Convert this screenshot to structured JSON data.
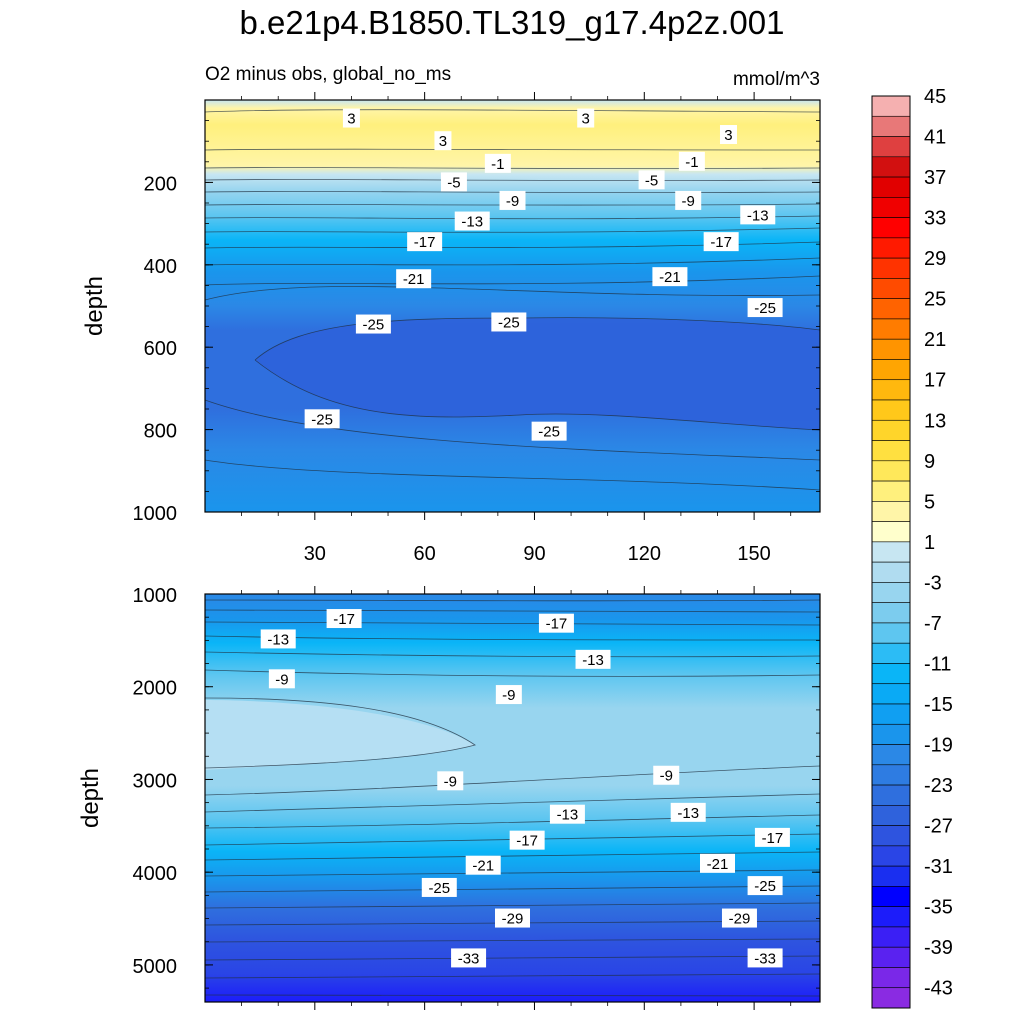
{
  "chart_data": {
    "type": "heatmap",
    "title": "b.e21p4.B1850.TL319_g17.4p2z.001",
    "subtitle": "O2 minus obs, global_no_ms",
    "units": "mmol/m^3",
    "x": {
      "range": [
        0,
        168
      ],
      "ticks": [
        30,
        60,
        90,
        120,
        150
      ],
      "tick_labels": [
        "30",
        "60",
        "90",
        "120",
        "150"
      ]
    },
    "panels": [
      {
        "name": "upper",
        "ylabel": "depth",
        "ylim": [
          0,
          1000
        ],
        "yticks": [
          200,
          400,
          600,
          800,
          1000
        ],
        "ytick_labels": [
          "200",
          "400",
          "600",
          "800",
          "1000"
        ],
        "contours": [
          {
            "label": "3",
            "x": 40,
            "y": 45
          },
          {
            "label": "3",
            "x": 104,
            "y": 45
          },
          {
            "label": "3",
            "x": 65,
            "y": 100
          },
          {
            "label": "3",
            "x": 143,
            "y": 85
          },
          {
            "label": "-1",
            "x": 80,
            "y": 155
          },
          {
            "label": "-1",
            "x": 133,
            "y": 150
          },
          {
            "label": "-5",
            "x": 68,
            "y": 200
          },
          {
            "label": "-5",
            "x": 122,
            "y": 195
          },
          {
            "label": "-9",
            "x": 84,
            "y": 245
          },
          {
            "label": "-9",
            "x": 132,
            "y": 245
          },
          {
            "label": "-13",
            "x": 73,
            "y": 295
          },
          {
            "label": "-13",
            "x": 151,
            "y": 280
          },
          {
            "label": "-17",
            "x": 60,
            "y": 345
          },
          {
            "label": "-17",
            "x": 141,
            "y": 345
          },
          {
            "label": "-21",
            "x": 57,
            "y": 435
          },
          {
            "label": "-21",
            "x": 127,
            "y": 430
          },
          {
            "label": "-25",
            "x": 46,
            "y": 545
          },
          {
            "label": "-25",
            "x": 83,
            "y": 540
          },
          {
            "label": "-25",
            "x": 153,
            "y": 505
          },
          {
            "label": "-25",
            "x": 32,
            "y": 775
          },
          {
            "label": "-25",
            "x": 94,
            "y": 805
          }
        ]
      },
      {
        "name": "lower",
        "ylabel": "depth",
        "ylim": [
          1000,
          5400
        ],
        "yticks": [
          1000,
          2000,
          3000,
          4000,
          5000
        ],
        "ytick_labels": [
          "1000",
          "2000",
          "3000",
          "4000",
          "5000"
        ],
        "contours": [
          {
            "label": "-17",
            "x": 38,
            "y": 1270
          },
          {
            "label": "-17",
            "x": 96,
            "y": 1320
          },
          {
            "label": "-13",
            "x": 20,
            "y": 1490
          },
          {
            "label": "-13",
            "x": 106,
            "y": 1710
          },
          {
            "label": "-9",
            "x": 21,
            "y": 1920
          },
          {
            "label": "-9",
            "x": 83,
            "y": 2090
          },
          {
            "label": "-9",
            "x": 67,
            "y": 3020
          },
          {
            "label": "-9",
            "x": 126,
            "y": 2960
          },
          {
            "label": "-13",
            "x": 99,
            "y": 3380
          },
          {
            "label": "-13",
            "x": 132,
            "y": 3360
          },
          {
            "label": "-17",
            "x": 88,
            "y": 3660
          },
          {
            "label": "-17",
            "x": 155,
            "y": 3630
          },
          {
            "label": "-21",
            "x": 76,
            "y": 3930
          },
          {
            "label": "-21",
            "x": 140,
            "y": 3910
          },
          {
            "label": "-25",
            "x": 64,
            "y": 4170
          },
          {
            "label": "-25",
            "x": 153,
            "y": 4150
          },
          {
            "label": "-29",
            "x": 84,
            "y": 4500
          },
          {
            "label": "-29",
            "x": 146,
            "y": 4500
          },
          {
            "label": "-33",
            "x": 72,
            "y": 4930
          },
          {
            "label": "-33",
            "x": 153,
            "y": 4930
          }
        ]
      }
    ],
    "colorbar": {
      "levels": [
        -45,
        -43,
        -41,
        -39,
        -37,
        -35,
        -33,
        -31,
        -29,
        -27,
        -25,
        -23,
        -21,
        -19,
        -17,
        -15,
        -13,
        -11,
        -9,
        -7,
        -5,
        -3,
        -1,
        1,
        3,
        5,
        7,
        9,
        11,
        13,
        15,
        17,
        19,
        21,
        23,
        25,
        27,
        29,
        31,
        33,
        35,
        37,
        39,
        41,
        43,
        45
      ],
      "labels": [
        "45",
        "41",
        "37",
        "33",
        "29",
        "25",
        "21",
        "17",
        "13",
        "9",
        "5",
        "1",
        "-3",
        "-7",
        "-11",
        "-15",
        "-19",
        "-23",
        "-27",
        "-31",
        "-35",
        "-39",
        "-43"
      ],
      "colors": [
        "#8a2be2",
        "#7a28e8",
        "#5a22f0",
        "#3b1ff5",
        "#1c1cfa",
        "#0000ff",
        "#1a2ff0",
        "#2a45e6",
        "#2e54df",
        "#2f62dc",
        "#2f6fde",
        "#2e7ce2",
        "#2b88e6",
        "#1a95ec",
        "#109ff2",
        "#0aaaf5",
        "#0ab5f7",
        "#2cbcf5",
        "#5ec6f0",
        "#7cccee",
        "#98d5ef",
        "#b0dcf0",
        "#c7e6f2",
        "#ffffcc",
        "#fff5a8",
        "#fff07d",
        "#ffe85a",
        "#ffe040",
        "#ffd52a",
        "#ffc81a",
        "#ffb80e",
        "#ffa502",
        "#ff9400",
        "#ff7c00",
        "#ff6300",
        "#ff4b00",
        "#ff3300",
        "#ff1a00",
        "#ff0000",
        "#f00000",
        "#e10000",
        "#d21010",
        "#df4040",
        "#e87878",
        "#f5b0b0"
      ]
    }
  }
}
